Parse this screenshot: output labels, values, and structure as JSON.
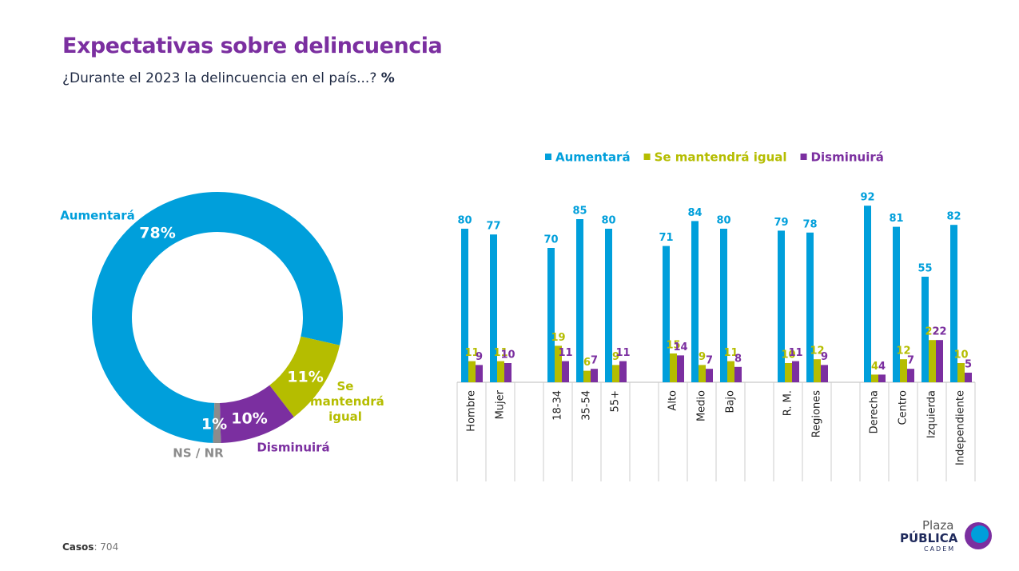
{
  "chart_data": [
    {
      "type": "pie",
      "title": "Expectativas sobre delincuencia",
      "subtitle": "¿Durante el 2023 la delincuencia en el país...?",
      "unit_label": "%",
      "categories": [
        "Aumentará",
        "Se mantendrá igual",
        "Disminuirá",
        "NS / NR"
      ],
      "values": [
        78,
        11,
        10,
        1
      ],
      "value_labels": [
        "78%",
        "11%",
        "10%",
        "1%"
      ],
      "colors": [
        "#009fdb",
        "#b5bd00",
        "#7b2fa0",
        "#8c8c8c"
      ],
      "donut": true
    },
    {
      "type": "bar",
      "categories": [
        "Hombre",
        "Mujer",
        "18-34",
        "35-54",
        "55+",
        "Alto",
        "Medio",
        "Bajo",
        "R. M.",
        "Regiones",
        "Derecha",
        "Centro",
        "Izquierda",
        "Independiente"
      ],
      "series": [
        {
          "name": "Aumentará",
          "color": "#009fdb",
          "values": [
            80,
            77,
            70,
            85,
            80,
            71,
            84,
            80,
            79,
            78,
            92,
            81,
            55,
            82
          ]
        },
        {
          "name": "Se mantendrá igual",
          "color": "#b5bd00",
          "values": [
            11,
            11,
            19,
            6,
            9,
            15,
            9,
            11,
            10,
            12,
            4,
            12,
            22,
            10
          ]
        },
        {
          "name": "Disminuirá",
          "color": "#7b2fa0",
          "values": [
            9,
            10,
            11,
            7,
            11,
            14,
            7,
            8,
            11,
            9,
            4,
            7,
            22,
            5
          ]
        }
      ],
      "legend": "top"
    }
  ],
  "footer": {
    "cases_label": "Casos",
    "cases_value": ": 704",
    "brand": "Plaza",
    "brand_main": "PÚBLICA",
    "brand_sub": "CADEM"
  }
}
